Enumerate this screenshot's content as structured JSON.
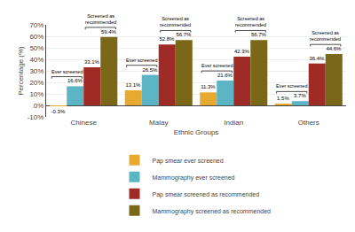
{
  "chart_data": {
    "type": "bar",
    "categories": [
      "Chinese",
      "Malay",
      "Indian",
      "Others"
    ],
    "series": [
      {
        "name": "Pap smear ever screened",
        "color": "#E8A930",
        "values": [
          -0.3,
          13.1,
          11.3,
          1.5
        ],
        "value_labels": [
          "-0.3%",
          "13.1%",
          "11.3%",
          "1.5%"
        ]
      },
      {
        "name": "Mammography ever screened",
        "color": "#5BB5C5",
        "values": [
          16.6,
          26.5,
          21.6,
          3.7
        ],
        "value_labels": [
          "16.6%",
          "26.5%",
          "21.6%",
          "3.7%"
        ]
      },
      {
        "name": "Pap smear screened as recommended",
        "color": "#9E2B25",
        "values": [
          33.1,
          52.8,
          42.3,
          36.4
        ],
        "value_labels": [
          "33.1%",
          "52.8%",
          "42.3%",
          "36.4%"
        ]
      },
      {
        "name": "Mammography screened as recommended",
        "color": "#7A6818",
        "values": [
          59.4,
          56.7,
          56.7,
          44.6
        ],
        "value_labels": [
          "59.4%",
          "56.7%",
          "56.7%",
          "44.6%"
        ]
      }
    ],
    "xlabel": "Ethnic Groups",
    "ylabel": "Percentage (%)",
    "ylim": [
      -10,
      70
    ],
    "yticks": [
      {
        "value": -10,
        "label": "-10%"
      },
      {
        "value": 0,
        "label": "0%"
      },
      {
        "value": 10,
        "label": "10%"
      },
      {
        "value": 20,
        "label": "20%"
      },
      {
        "value": 30,
        "label": "30%"
      },
      {
        "value": 40,
        "label": "40%"
      },
      {
        "value": 50,
        "label": "50%"
      },
      {
        "value": 60,
        "label": "60%"
      },
      {
        "value": 70,
        "label": "70%"
      }
    ],
    "grid": true,
    "data_labels": true,
    "legend": "bottom",
    "annotations": [
      "Ever screened",
      "Screened as\nrecommended"
    ]
  }
}
